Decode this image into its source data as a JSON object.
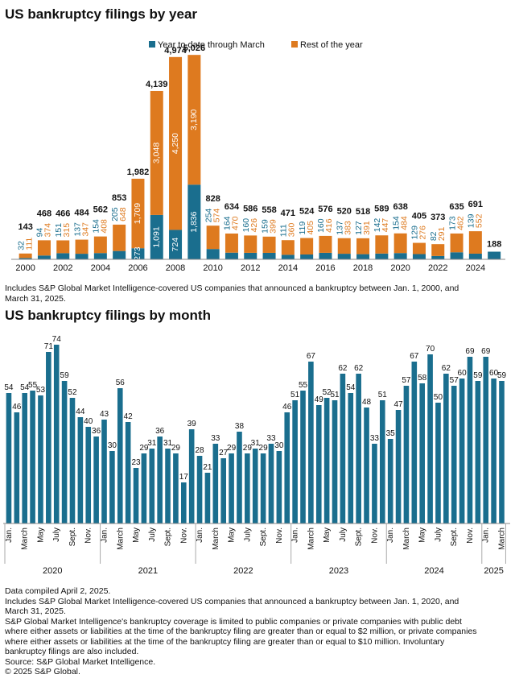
{
  "chart_data": [
    {
      "type": "bar",
      "stacked": true,
      "title": "US bankruptcy filings by year",
      "legend": [
        "Year to date through March",
        "Rest of the year"
      ],
      "legend_placement": "top-right",
      "colors": {
        "ytd": "#1a6e8e",
        "rest": "#de7a1f",
        "total_label": "#111111"
      },
      "categories": [
        "2000",
        "2001",
        "2002",
        "2003",
        "2004",
        "2005",
        "2006",
        "2007",
        "2008",
        "2009",
        "2010",
        "2011",
        "2012",
        "2013",
        "2014",
        "2015",
        "2016",
        "2017",
        "2018",
        "2019",
        "2020",
        "2021",
        "2022",
        "2023",
        "2024",
        "2025"
      ],
      "x_tick_labels": [
        "2000",
        "2002",
        "2004",
        "2006",
        "2008",
        "2010",
        "2012",
        "2014",
        "2016",
        "2018",
        "2020",
        "2022",
        "2024"
      ],
      "series": [
        {
          "name": "Year to date through March",
          "values": [
            32,
            94,
            151,
            137,
            154,
            205,
            273,
            1091,
            724,
            1836,
            254,
            164,
            160,
            159,
            111,
            119,
            160,
            137,
            127,
            142,
            154,
            129,
            82,
            173,
            139,
            188
          ]
        },
        {
          "name": "Rest of the year",
          "values": [
            111,
            374,
            315,
            347,
            408,
            648,
            1709,
            3048,
            4250,
            3190,
            574,
            470,
            426,
            399,
            360,
            405,
            416,
            383,
            391,
            447,
            484,
            276,
            291,
            462,
            552,
            null
          ]
        }
      ],
      "totals": [
        143,
        468,
        466,
        484,
        562,
        853,
        1982,
        4139,
        4974,
        5026,
        828,
        634,
        586,
        558,
        471,
        524,
        576,
        520,
        518,
        589,
        638,
        405,
        373,
        635,
        691,
        188
      ],
      "grid": false
    },
    {
      "type": "bar",
      "title": "US bankruptcy filings by month",
      "color": "#1a6e8e",
      "values": [
        54,
        46,
        54,
        55,
        53,
        71,
        74,
        59,
        52,
        44,
        40,
        36,
        43,
        30,
        56,
        42,
        23,
        29,
        31,
        36,
        31,
        29,
        17,
        39,
        28,
        21,
        33,
        27,
        29,
        38,
        29,
        31,
        29,
        33,
        30,
        46,
        51,
        55,
        67,
        49,
        52,
        51,
        62,
        54,
        62,
        48,
        33,
        51,
        35,
        47,
        57,
        67,
        58,
        70,
        50,
        62,
        57,
        60,
        69,
        59,
        69,
        60,
        59
      ],
      "month_tick_labels": [
        "Jan.",
        "March",
        "May",
        "July",
        "Sept.",
        "Nov."
      ],
      "year_labels": [
        "2020",
        "2021",
        "2022",
        "2023",
        "2024",
        "2025"
      ],
      "grid": false
    }
  ],
  "notes": {
    "year_note_1": "Includes S&P Global Market Intelligence-covered US companies that announced a bankruptcy between Jan. 1, 2000, and",
    "year_note_2": "March 31, 2025.",
    "compiled": "Data compiled April 2, 2025.",
    "month_note_1": "Includes S&P Global Market Intelligence-covered US companies that announced a bankruptcy between Jan. 1, 2020, and",
    "month_note_2": "March 31, 2025.",
    "coverage_1": "S&P Global Market Intelligence's bankruptcy coverage is limited to public companies or private companies with public debt",
    "coverage_2": "where either assets or liabilities at the time of the bankruptcy filing are greater than or equal to $2 million, or private companies",
    "coverage_3": "where either assets or liabilities at the time of the bankruptcy filing are greater than or equal to $10 million. Involuntary",
    "coverage_4": "bankruptcy filings are also included.",
    "source": "Source: S&P Global Market Intelligence.",
    "copyright": "© 2025 S&P Global."
  }
}
